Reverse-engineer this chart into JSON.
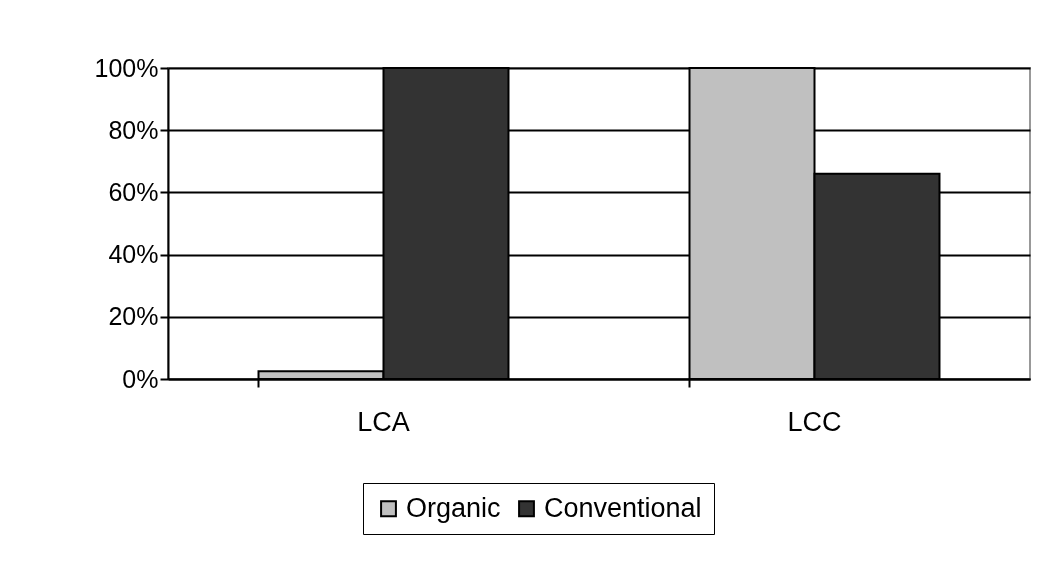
{
  "chart_data": {
    "type": "bar",
    "categories": [
      "LCA",
      "LCC"
    ],
    "series": [
      {
        "name": "Organic",
        "color": "#c0c0c0",
        "values": [
          2.5,
          100
        ]
      },
      {
        "name": "Conventional",
        "color": "#333333",
        "values": [
          100,
          66
        ]
      }
    ],
    "ylim": [
      0,
      100
    ],
    "yticks": [
      {
        "value": 0,
        "label": "0%"
      },
      {
        "value": 20,
        "label": "20%"
      },
      {
        "value": 40,
        "label": "40%"
      },
      {
        "value": 60,
        "label": "60%"
      },
      {
        "value": 80,
        "label": "80%"
      },
      {
        "value": 100,
        "label": "100%"
      }
    ],
    "grid": "y",
    "legend": "bottom"
  }
}
